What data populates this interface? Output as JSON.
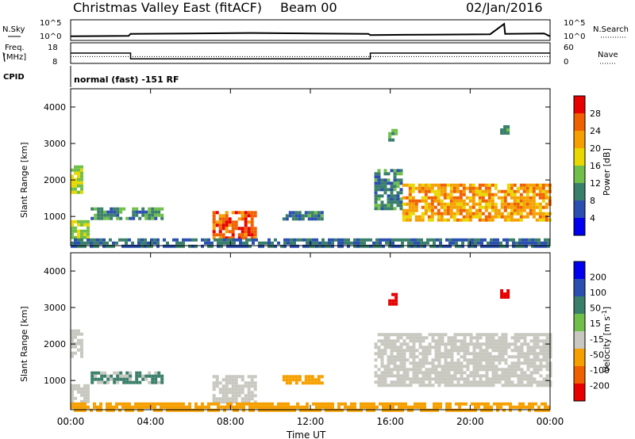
{
  "header": {
    "station": "Christmas Valley East (fitACF)",
    "beam": "Beam 00",
    "date": "02/Jan/2016"
  },
  "side_labels": {
    "nsky": "N.Sky",
    "nsearch": "N.Search",
    "freq_line1": "Freq.",
    "freq_line2": "[MHz]",
    "nave": "Nave",
    "cpid": "CPID",
    "cpid_value": "normal (fast) -151 RF",
    "noise_tick_top": "10^5",
    "noise_tick_bottom": "10^0",
    "freq_tick_top": "18",
    "freq_tick_bottom": "8",
    "nave_tick_top": "60",
    "nave_tick_bottom": "0"
  },
  "colors": {
    "power_scale": [
      "#0000ee",
      "#2b4fb0",
      "#3a7f6a",
      "#6fbf4a",
      "#e8d800",
      "#f5a000",
      "#f06000",
      "#e60000"
    ],
    "velocity_scale": [
      "#e60000",
      "#f06000",
      "#f5a000",
      "#c8c8c0",
      "#6fbf4a",
      "#3a7f6a",
      "#2b4fb0",
      "#0000ee"
    ]
  },
  "chart_data": [
    {
      "type": "line",
      "panel": "noise",
      "ylabel_left": "N.Sky",
      "ylabel_right": "N.Search",
      "x_unit": "hours UT",
      "x": [
        0,
        2.9,
        3.0,
        6,
        9,
        12,
        14.9,
        15.0,
        18,
        21,
        21.7,
        21.75,
        23.7,
        24
      ],
      "y": [
        1.0,
        1.1,
        1.6,
        1.7,
        1.8,
        1.7,
        1.6,
        1.3,
        1.4,
        1.5,
        4.0,
        1.6,
        1.7,
        1.0
      ],
      "ylim": [
        0,
        5
      ]
    },
    {
      "type": "line",
      "panel": "frequency",
      "ylabel_left": "Freq. [MHz]",
      "ylabel_right": "Nave",
      "x_unit": "hours UT",
      "x": [
        0,
        3.0,
        3.0,
        15.0,
        15.0,
        24
      ],
      "y": [
        13,
        13,
        10.2,
        10.2,
        13,
        13
      ],
      "ylim": [
        8,
        18
      ],
      "nave_approx": 20
    },
    {
      "type": "heatmap",
      "panel": "power",
      "ylabel": "Slant Range [km]",
      "xlabel": "Time UT",
      "xlim": [
        0,
        24
      ],
      "ylim": [
        200,
        4500
      ],
      "xticks": [
        "00:00",
        "04:00",
        "08:00",
        "12:00",
        "16:00",
        "20:00",
        "00:00"
      ],
      "yticks": [
        1000,
        2000,
        3000,
        4000
      ],
      "colorbar_label": "Power [dB]",
      "colorbar_ticks": [
        "4",
        "8",
        "12",
        "16",
        "20",
        "24",
        "28"
      ],
      "regions": [
        {
          "t0": 0.0,
          "t1": 0.5,
          "r0": 1700,
          "r1": 2400,
          "power": 16
        },
        {
          "t0": 0.0,
          "t1": 0.9,
          "r0": 450,
          "r1": 900,
          "power": 16
        },
        {
          "t0": 1.0,
          "t1": 4.5,
          "r0": 950,
          "r1": 1250,
          "power": 10
        },
        {
          "t0": 7.1,
          "t1": 9.3,
          "r0": 400,
          "r1": 1150,
          "power": 26
        },
        {
          "t0": 10.6,
          "t1": 12.6,
          "r0": 950,
          "r1": 1150,
          "power": 9
        },
        {
          "t0": 15.2,
          "t1": 16.6,
          "r0": 1250,
          "r1": 2300,
          "power": 10
        },
        {
          "t0": 16.6,
          "t1": 24.0,
          "r0": 900,
          "r1": 1900,
          "power": 22
        },
        {
          "t0": 15.9,
          "t1": 16.3,
          "r0": 3100,
          "r1": 3400,
          "power": 12
        },
        {
          "t0": 21.5,
          "t1": 21.9,
          "r0": 3300,
          "r1": 3500,
          "power": 12
        },
        {
          "t0": 0.0,
          "t1": 24.0,
          "r0": 200,
          "r1": 400,
          "power": 8
        }
      ]
    },
    {
      "type": "heatmap",
      "panel": "velocity",
      "ylabel": "Slant Range [km]",
      "xlabel": "Time UT",
      "xlim": [
        0,
        24
      ],
      "ylim": [
        200,
        4500
      ],
      "xticks": [
        "00:00",
        "04:00",
        "08:00",
        "12:00",
        "16:00",
        "20:00",
        "00:00"
      ],
      "yticks": [
        1000,
        2000,
        3000,
        4000
      ],
      "colorbar_label": "Velocity [m s^-1]",
      "colorbar_ticks": [
        "-200",
        "-100",
        "-50",
        "-15",
        "15",
        "50",
        "100",
        "200"
      ],
      "regions": [
        {
          "t0": 0.0,
          "t1": 0.5,
          "r0": 1700,
          "r1": 2400,
          "velocity": 0
        },
        {
          "t0": 0.0,
          "t1": 0.9,
          "r0": 450,
          "r1": 900,
          "velocity": 0
        },
        {
          "t0": 1.0,
          "t1": 4.5,
          "r0": 950,
          "r1": 1250,
          "velocity": 20
        },
        {
          "t0": 7.1,
          "t1": 9.3,
          "r0": 400,
          "r1": 1150,
          "velocity": 0
        },
        {
          "t0": 10.6,
          "t1": 12.6,
          "r0": 950,
          "r1": 1150,
          "velocity": -40
        },
        {
          "t0": 15.2,
          "t1": 24.0,
          "r0": 900,
          "r1": 2300,
          "velocity": 0
        },
        {
          "t0": 0.0,
          "t1": 24.0,
          "r0": 200,
          "r1": 400,
          "velocity": -30
        },
        {
          "t0": 15.9,
          "t1": 16.3,
          "r0": 3100,
          "r1": 3400,
          "velocity": -150
        },
        {
          "t0": 21.5,
          "t1": 21.9,
          "r0": 3300,
          "r1": 3500,
          "velocity": -150
        }
      ]
    }
  ]
}
